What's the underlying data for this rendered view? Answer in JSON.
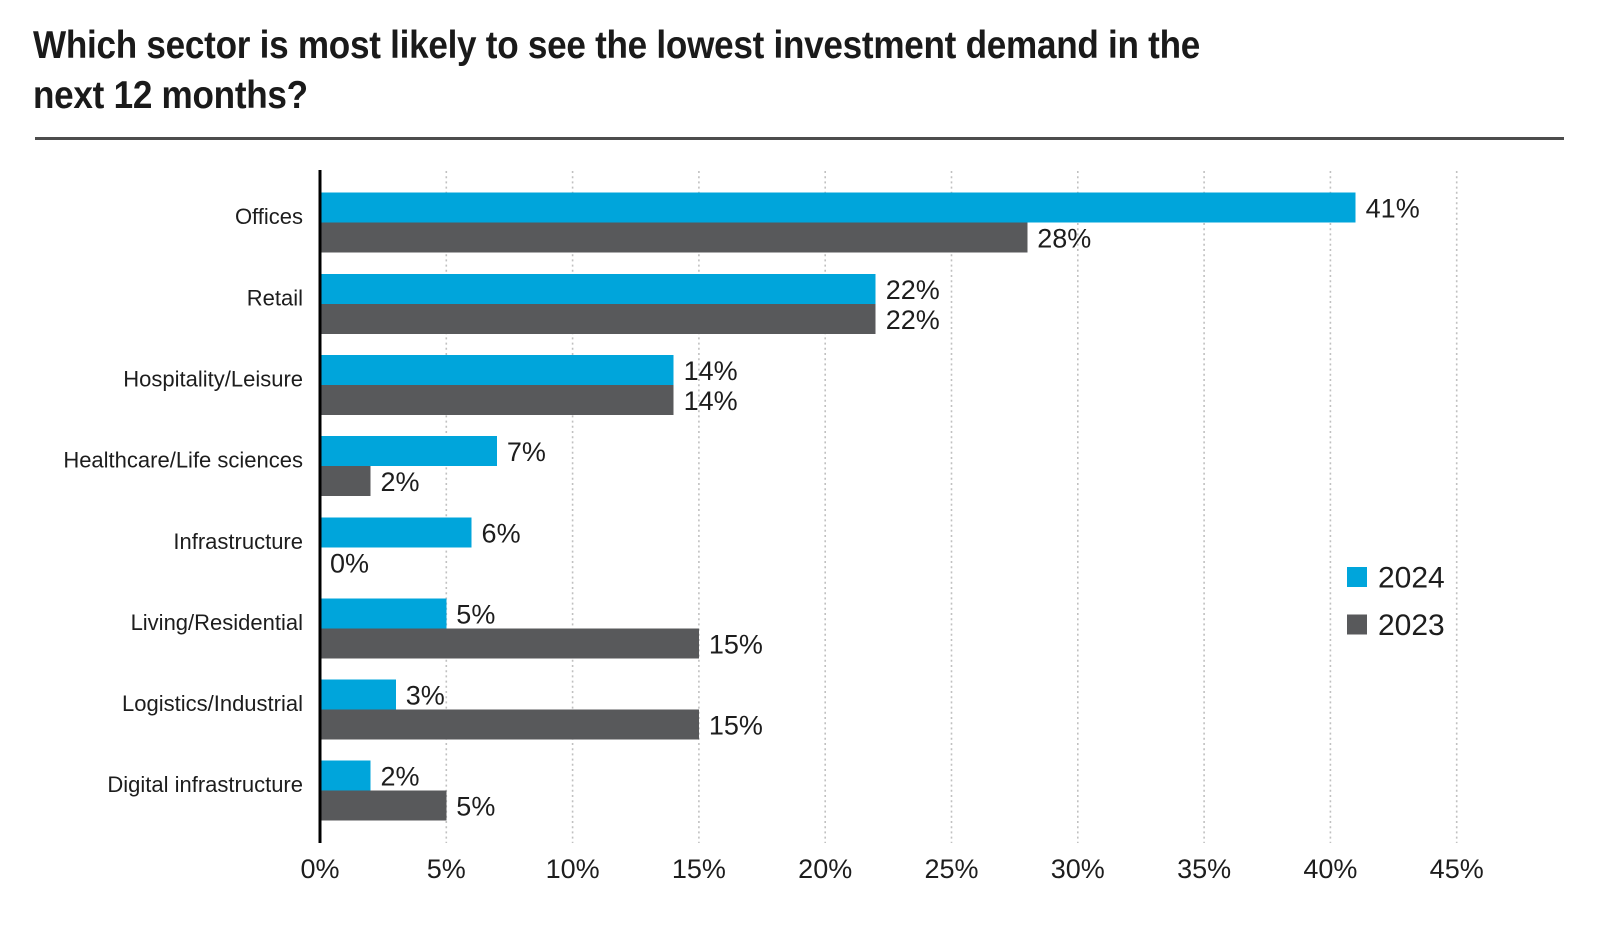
{
  "header": {
    "title_line1": "Which sector is most likely to see the lowest investment demand in the",
    "title_line2": "next 12 months?"
  },
  "chart_data": {
    "type": "bar",
    "orientation": "horizontal",
    "title": "Which sector is most likely to see the lowest investment demand in the next 12 months?",
    "categories": [
      "Offices",
      "Retail",
      "Hospitality/Leisure",
      "Healthcare/Life sciences",
      "Infrastructure",
      "Living/Residential",
      "Logistics/Industrial",
      "Digital infrastructure"
    ],
    "series": [
      {
        "name": "2024",
        "color": "#00A5DB",
        "values": [
          41,
          22,
          14,
          7,
          6,
          5,
          3,
          2
        ]
      },
      {
        "name": "2023",
        "color": "#58595B",
        "values": [
          28,
          22,
          14,
          2,
          0,
          15,
          15,
          5
        ]
      }
    ],
    "value_suffix": "%",
    "data_labels_shown": true,
    "xlim": [
      0,
      45
    ],
    "x_ticks": [
      0,
      5,
      10,
      15,
      20,
      25,
      30,
      35,
      40,
      45
    ],
    "x_tick_labels": [
      "0%",
      "5%",
      "10%",
      "15%",
      "20%",
      "25%",
      "30%",
      "35%",
      "40%",
      "45%"
    ],
    "grid": "vertical-dotted",
    "legend_position": "middle-right"
  },
  "colors": {
    "axis": "#000000",
    "gridline": "#c0c0c0",
    "text": "#1d1d1d",
    "title_rule": "#4d4d4d",
    "background": "#ffffff"
  }
}
